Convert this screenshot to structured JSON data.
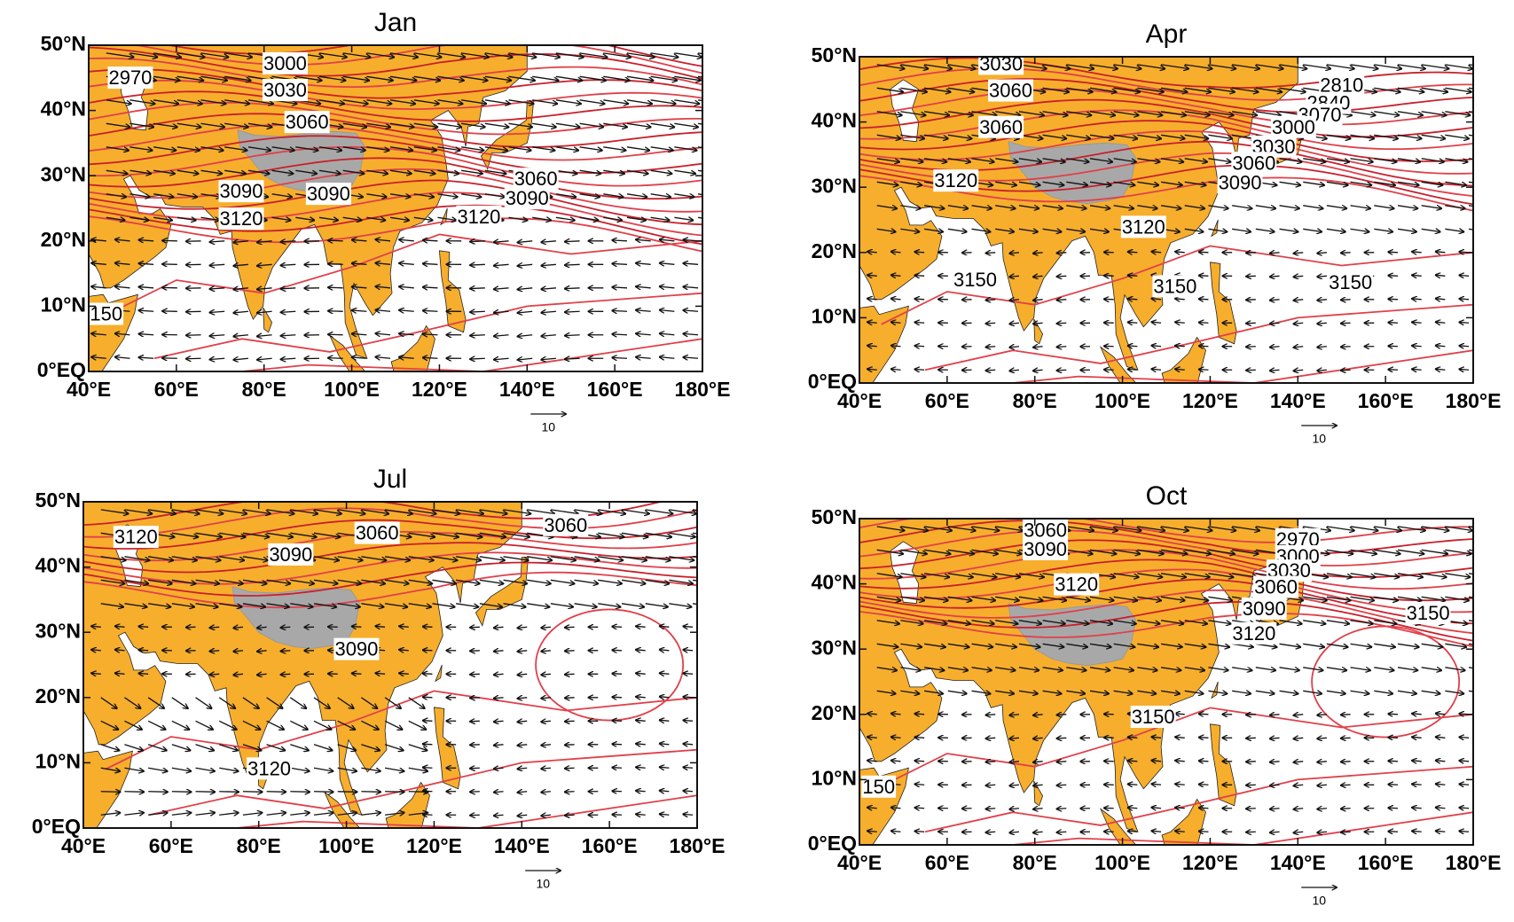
{
  "axes": {
    "lat_labels": [
      "50°N",
      "40°N",
      "30°N",
      "20°N",
      "10°N",
      "0°EQ"
    ],
    "lon_labels": [
      "40°E",
      "60°E",
      "80°E",
      "100°E",
      "120°E",
      "140°E",
      "160°E",
      "180°E"
    ]
  },
  "vector_scale_label": "10",
  "panels": [
    {
      "title": "Jan",
      "contour_labels": [
        "2970",
        "3000",
        "3030",
        "3060",
        "3090",
        "3120",
        "3090",
        "3120",
        "3090",
        "3060",
        "150"
      ]
    },
    {
      "title": "Apr",
      "contour_labels": [
        "3030",
        "3060",
        "3060",
        "3120",
        "3120",
        "3150",
        "3150",
        "3150",
        "2810",
        "2840",
        "3070",
        "3000",
        "3030",
        "3060",
        "3090"
      ]
    },
    {
      "title": "Jul",
      "contour_labels": [
        "3120",
        "3090",
        "3060",
        "3060",
        "3090",
        "3120"
      ]
    },
    {
      "title": "Oct",
      "contour_labels": [
        "3060",
        "3090",
        "3120",
        "2970",
        "3000",
        "3030",
        "3060",
        "3090",
        "3120",
        "3150",
        "3150",
        "150"
      ]
    }
  ]
}
